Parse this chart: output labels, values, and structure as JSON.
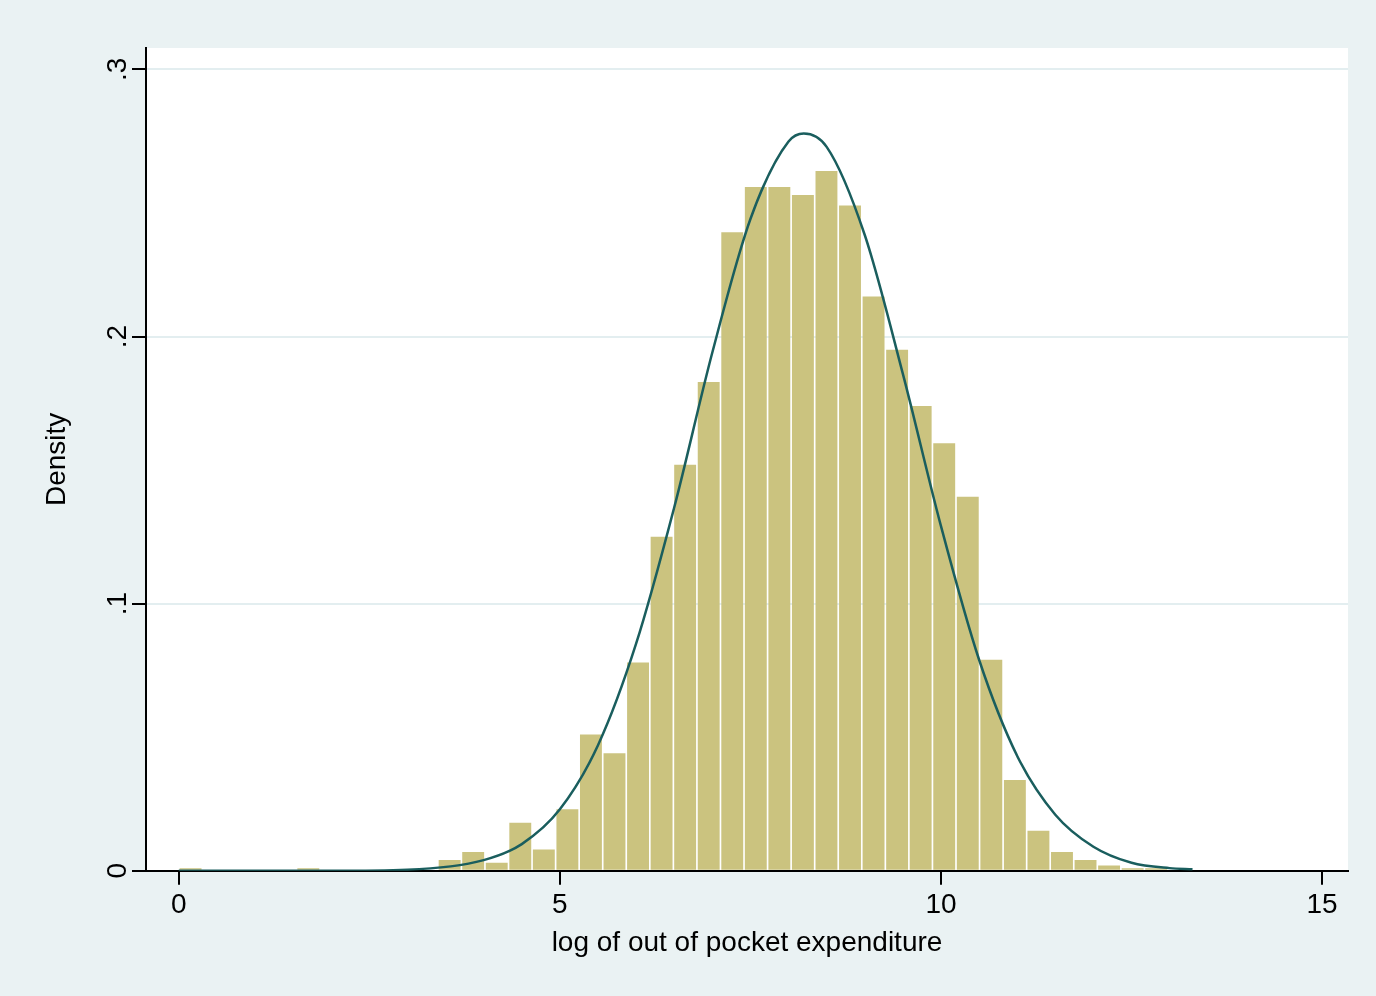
{
  "chart_data": {
    "type": "histogram",
    "xlabel": "log of out of pocket expenditure",
    "ylabel": "Density",
    "bins": [
      0,
      0.309,
      0.618,
      0.927,
      1.236,
      1.545,
      1.854,
      2.163,
      2.472,
      2.781,
      3.09,
      3.399,
      3.708,
      4.017,
      4.326,
      4.635,
      4.944,
      5.253,
      5.562,
      5.871,
      6.18,
      6.489,
      6.798,
      7.107,
      7.416,
      7.725,
      8.034,
      8.343,
      8.652,
      8.961,
      9.27,
      9.579,
      9.888,
      10.197,
      10.506,
      10.815,
      11.124,
      11.433,
      11.742,
      12.051,
      12.36,
      12.669,
      12.978,
      13.287
    ],
    "series": [
      {
        "type": "histogram",
        "color": "#cbc37f",
        "values": [
          0.001,
          0,
          0,
          0,
          0,
          0.001,
          0,
          0,
          0,
          null,
          null,
          0.004,
          0.007,
          0.003,
          0.018,
          0.008,
          0.023,
          0.051,
          0.044,
          0.078,
          0.125,
          0.152,
          0.183,
          0.239,
          0.256,
          0.256,
          0.253,
          0.262,
          0.249,
          0.215,
          0.195,
          0.174,
          0.16,
          0.14,
          0.079,
          0.034,
          0.015,
          0.007,
          0.004,
          0.002,
          0.001,
          0.001,
          null
        ]
      },
      {
        "type": "line",
        "color": "#1a5e5e",
        "x": [
          0,
          2,
          3,
          4,
          4.5,
          5,
          5.5,
          6,
          6.5,
          7,
          7.5,
          8,
          8.2,
          8.5,
          9,
          9.5,
          10,
          10.5,
          11,
          11.5,
          12,
          12.5,
          13,
          13.3
        ],
        "values": [
          0,
          0,
          0.0004,
          0.004,
          0.01,
          0.023,
          0.047,
          0.085,
          0.136,
          0.194,
          0.244,
          0.273,
          0.276,
          0.271,
          0.238,
          0.186,
          0.129,
          0.079,
          0.043,
          0.021,
          0.009,
          0.003,
          0.001,
          0.0006
        ]
      }
    ],
    "xlim": [
      -0.43,
      15.34
    ],
    "xticks": [
      0,
      5,
      10,
      15
    ],
    "ylim": [
      0,
      0.308
    ],
    "yticks": [
      0,
      {
        "value": 0.1,
        "label": ".1"
      },
      {
        "value": 0.2,
        "label": ".2"
      },
      {
        "value": 0.3,
        "label": ".3"
      }
    ],
    "grid": "y",
    "legend": false,
    "marker": "none"
  }
}
